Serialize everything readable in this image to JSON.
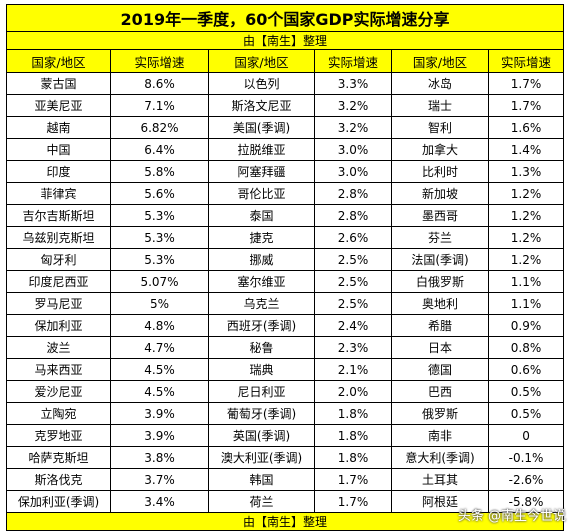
{
  "title": "2019年一季度，60个国家GDP实际增速分享",
  "subtitle": "由【南生】整理",
  "footer": "由【南生】整理",
  "watermark": "头条 @南生今世说",
  "headers": [
    "国家/地区",
    "实际增速",
    "国家/地区",
    "实际增速",
    "国家/地区",
    "实际增速"
  ],
  "rows": [
    [
      "蒙古国",
      "8.6%",
      "以色列",
      "3.3%",
      "冰岛",
      "1.7%"
    ],
    [
      "亚美尼亚",
      "7.1%",
      "斯洛文尼亚",
      "3.2%",
      "瑞士",
      "1.7%"
    ],
    [
      "越南",
      "6.82%",
      "美国(季调)",
      "3.2%",
      "智利",
      "1.6%"
    ],
    [
      "中国",
      "6.4%",
      "拉脱维亚",
      "3.0%",
      "加拿大",
      "1.4%"
    ],
    [
      "印度",
      "5.8%",
      "阿塞拜疆",
      "3.0%",
      "比利时",
      "1.3%"
    ],
    [
      "菲律宾",
      "5.6%",
      "哥伦比亚",
      "2.8%",
      "新加坡",
      "1.2%"
    ],
    [
      "吉尔吉斯斯坦",
      "5.3%",
      "泰国",
      "2.8%",
      "墨西哥",
      "1.2%"
    ],
    [
      "乌兹别克斯坦",
      "5.3%",
      "捷克",
      "2.6%",
      "芬兰",
      "1.2%"
    ],
    [
      "匈牙利",
      "5.3%",
      "挪威",
      "2.5%",
      "法国(季调)",
      "1.2%"
    ],
    [
      "印度尼西亚",
      "5.07%",
      "塞尔维亚",
      "2.5%",
      "白俄罗斯",
      "1.1%"
    ],
    [
      "罗马尼亚",
      "5%",
      "乌克兰",
      "2.5%",
      "奥地利",
      "1.1%"
    ],
    [
      "保加利亚",
      "4.8%",
      "西班牙(季调)",
      "2.4%",
      "希腊",
      "0.9%"
    ],
    [
      "波兰",
      "4.7%",
      "秘鲁",
      "2.3%",
      "日本",
      "0.8%"
    ],
    [
      "马来西亚",
      "4.5%",
      "瑞典",
      "2.1%",
      "德国",
      "0.6%"
    ],
    [
      "爱沙尼亚",
      "4.5%",
      "尼日利亚",
      "2.0%",
      "巴西",
      "0.5%"
    ],
    [
      "立陶宛",
      "3.9%",
      "葡萄牙(季调)",
      "1.8%",
      "俄罗斯",
      "0.5%"
    ],
    [
      "克罗地亚",
      "3.9%",
      "英国(季调)",
      "1.8%",
      "南非",
      "0"
    ],
    [
      "哈萨克斯坦",
      "3.8%",
      "澳大利亚(季调)",
      "1.8%",
      "意大利(季调)",
      "-0.1%"
    ],
    [
      "斯洛伐克",
      "3.7%",
      "韩国",
      "1.7%",
      "土耳其",
      "-2.6%"
    ],
    [
      "保加利亚(季调)",
      "3.4%",
      "荷兰",
      "1.7%",
      "阿根廷",
      "-5.8%"
    ]
  ]
}
